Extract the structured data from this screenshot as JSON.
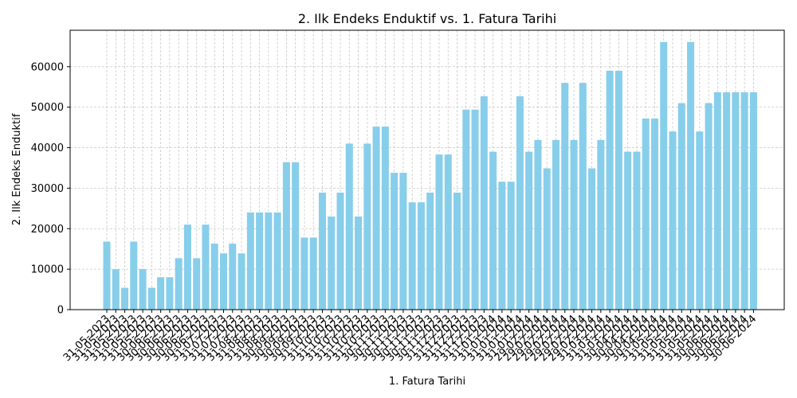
{
  "chart_data": {
    "type": "bar",
    "title": "2. Ilk Endeks Enduktif vs. 1. Fatura Tarihi",
    "xlabel": "1. Fatura Tarihi",
    "ylabel": "2. Ilk Endeks Enduktif",
    "ylim": [
      0,
      69000
    ],
    "yticks": [
      0,
      10000,
      20000,
      30000,
      40000,
      50000,
      60000
    ],
    "grid": true,
    "bar_color": "#87CEEB",
    "grid_color": "#c8c8c8",
    "categories": [
      "31-05-2023",
      "31-05-2023",
      "31-05-2023",
      "31-05-2023",
      "31-05-2023",
      "31-05-2023",
      "30-06-2023",
      "30-06-2023",
      "30-06-2023",
      "30-06-2023",
      "30-06-2023",
      "30-06-2023",
      "31-07-2023",
      "31-07-2023",
      "31-07-2023",
      "31-07-2023",
      "31-08-2023",
      "31-08-2023",
      "31-08-2023",
      "31-08-2023",
      "30-09-2023",
      "30-09-2023",
      "30-09-2023",
      "30-09-2023",
      "31-10-2023",
      "31-10-2023",
      "31-10-2023",
      "31-10-2023",
      "31-10-2023",
      "31-10-2023",
      "31-10-2023",
      "30-11-2023",
      "30-11-2023",
      "30-11-2023",
      "30-11-2023",
      "30-11-2023",
      "30-11-2023",
      "30-11-2023",
      "31-12-2023",
      "31-12-2023",
      "31-12-2023",
      "31-12-2023",
      "31-12-2023",
      "31-01-2024",
      "31-01-2024",
      "31-01-2024",
      "31-01-2024",
      "31-01-2024",
      "29-02-2024",
      "29-02-2024",
      "29-02-2024",
      "29-02-2024",
      "29-02-2024",
      "29-02-2024",
      "29-02-2024",
      "31-03-2024",
      "31-03-2024",
      "31-03-2024",
      "30-04-2024",
      "30-04-2024",
      "30-04-2024",
      "30-04-2024",
      "31-05-2024",
      "31-05-2024",
      "31-05-2024",
      "31-05-2024",
      "31-05-2024",
      "31-05-2024",
      "30-06-2024",
      "30-06-2024",
      "30-06-2024",
      "30-06-2024",
      "30-06-2024"
    ],
    "values": [
      16800,
      10000,
      5400,
      16800,
      10000,
      5400,
      8000,
      8000,
      12700,
      21000,
      12700,
      21000,
      16300,
      13900,
      16300,
      13900,
      24000,
      24000,
      24000,
      24000,
      36400,
      36400,
      17800,
      17800,
      28900,
      23000,
      28900,
      41000,
      23000,
      41000,
      45200,
      45200,
      33800,
      33800,
      26500,
      26500,
      28900,
      38300,
      38300,
      28900,
      49400,
      49400,
      52700,
      39000,
      31600,
      31600,
      52700,
      39000,
      41900,
      34900,
      41900,
      56000,
      41900,
      56000,
      34900,
      41900,
      59000,
      59000,
      39000,
      39000,
      47200,
      47200,
      66100,
      44000,
      51000,
      66100,
      44000,
      51000,
      53700,
      53700,
      53700,
      53700,
      53700
    ]
  }
}
